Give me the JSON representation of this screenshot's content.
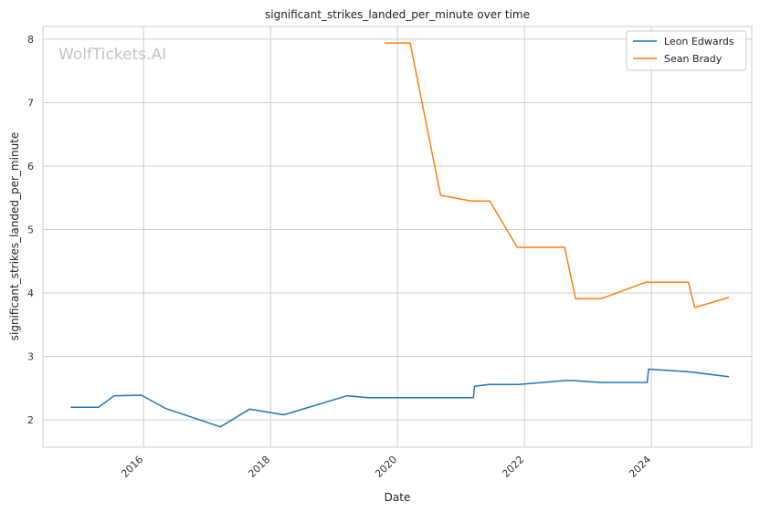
{
  "chart_data": {
    "type": "line",
    "title": "significant_strikes_landed_per_minute over time",
    "xlabel": "Date",
    "ylabel": "significant_strikes_landed_per_minute",
    "watermark": "WolfTickets.AI",
    "x_ticks": [
      "2016",
      "2018",
      "2020",
      "2022",
      "2024"
    ],
    "y_ticks": [
      "2",
      "3",
      "4",
      "5",
      "6",
      "7",
      "8"
    ],
    "xlim": [
      "2014-06-01",
      "2025-08-01"
    ],
    "ylim": [
      1.57,
      8.2
    ],
    "grid": true,
    "legend_position": "top-right",
    "series": [
      {
        "name": "Leon Edwards",
        "color": "#1f77b4",
        "points": [
          [
            "2014-11-08",
            2.2
          ],
          [
            "2015-04-18",
            2.2
          ],
          [
            "2015-07-15",
            2.38
          ],
          [
            "2015-12-19",
            2.39
          ],
          [
            "2016-05-08",
            2.18
          ],
          [
            "2017-03-18",
            1.89
          ],
          [
            "2017-09-02",
            2.17
          ],
          [
            "2018-03-17",
            2.08
          ],
          [
            "2018-06-23",
            2.16
          ],
          [
            "2019-03-16",
            2.38
          ],
          [
            "2019-07-20",
            2.35
          ],
          [
            "2021-03-13",
            2.35
          ],
          [
            "2021-03-20",
            2.53
          ],
          [
            "2021-06-12",
            2.56
          ],
          [
            "2021-12-01",
            2.56
          ],
          [
            "2022-08-20",
            2.62
          ],
          [
            "2022-10-10",
            2.62
          ],
          [
            "2023-03-18",
            2.59
          ],
          [
            "2023-12-08",
            2.59
          ],
          [
            "2023-12-16",
            2.8
          ],
          [
            "2024-07-27",
            2.76
          ],
          [
            "2024-09-01",
            2.75
          ],
          [
            "2025-03-22",
            2.68
          ]
        ]
      },
      {
        "name": "Sean Brady",
        "color": "#ff7f0e",
        "points": [
          [
            "2019-10-18",
            7.94
          ],
          [
            "2020-03-14",
            7.94
          ],
          [
            "2020-09-05",
            5.54
          ],
          [
            "2021-03-01",
            5.45
          ],
          [
            "2021-06-15",
            5.45
          ],
          [
            "2021-11-20",
            4.72
          ],
          [
            "2022-08-20",
            4.72
          ],
          [
            "2022-10-22",
            3.91
          ],
          [
            "2023-03-18",
            3.91
          ],
          [
            "2023-12-01",
            4.17
          ],
          [
            "2024-08-01",
            4.17
          ],
          [
            "2024-09-07",
            3.77
          ],
          [
            "2025-03-22",
            3.93
          ]
        ]
      }
    ]
  }
}
